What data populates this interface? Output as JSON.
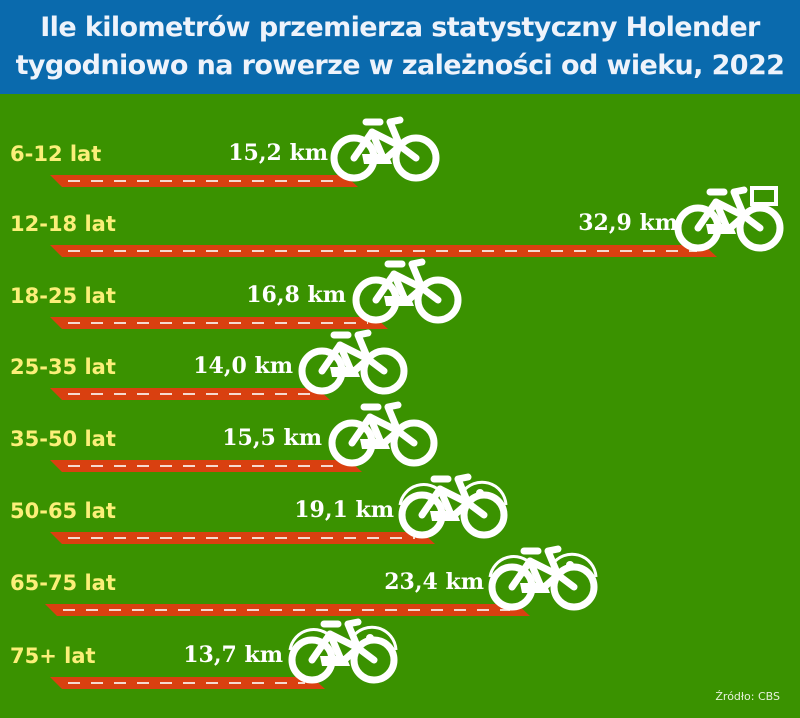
{
  "header": {
    "title_line1": "Ile kilometrów przemierza statystyczny Holender",
    "title_line2": "tygodniowo na rowerze w zależności od wieku, 2022"
  },
  "colors": {
    "header_bg": "#0a6aad",
    "background": "#3a9200",
    "bar": "#d94010",
    "label": "#fbef79",
    "value": "#ffffff"
  },
  "rows": [
    {
      "label": "6-12 lat",
      "value_text": "15,2 km",
      "value": 15.2,
      "icon": "bicycle-icon"
    },
    {
      "label": "12-18 lat",
      "value_text": "32,9 km",
      "value": 32.9,
      "icon": "bicycle-with-basket-icon"
    },
    {
      "label": "18-25 lat",
      "value_text": "16,8 km",
      "value": 16.8,
      "icon": "bicycle-icon"
    },
    {
      "label": "25-35 lat",
      "value_text": "14,0 km",
      "value": 14.0,
      "icon": "bicycle-icon"
    },
    {
      "label": "35-50 lat",
      "value_text": "15,5 km",
      "value": 15.5,
      "icon": "bicycle-icon"
    },
    {
      "label": "50-65 lat",
      "value_text": "19,1 km",
      "value": 19.1,
      "icon": "city-bicycle-icon"
    },
    {
      "label": "65-75 lat",
      "value_text": "23,4 km",
      "value": 23.4,
      "icon": "city-bicycle-icon"
    },
    {
      "label": "75+ lat",
      "value_text": "13,7 km",
      "value": 13.7,
      "icon": "city-bicycle-icon"
    }
  ],
  "source": "Źródło: CBS",
  "chart_data": {
    "type": "bar",
    "orientation": "horizontal",
    "title": "Ile kilometrów przemierza statystyczny Holender tygodniowo na rowerze w zależności od wieku, 2022",
    "categories": [
      "6-12 lat",
      "12-18 lat",
      "18-25 lat",
      "25-35 lat",
      "35-50 lat",
      "50-65 lat",
      "65-75 lat",
      "75+ lat"
    ],
    "values": [
      15.2,
      32.9,
      16.8,
      14.0,
      15.5,
      19.1,
      23.4,
      13.7
    ],
    "unit": "km",
    "xlabel": "",
    "ylabel": "",
    "grid": false,
    "legend": null,
    "source": "Źródło: CBS"
  }
}
